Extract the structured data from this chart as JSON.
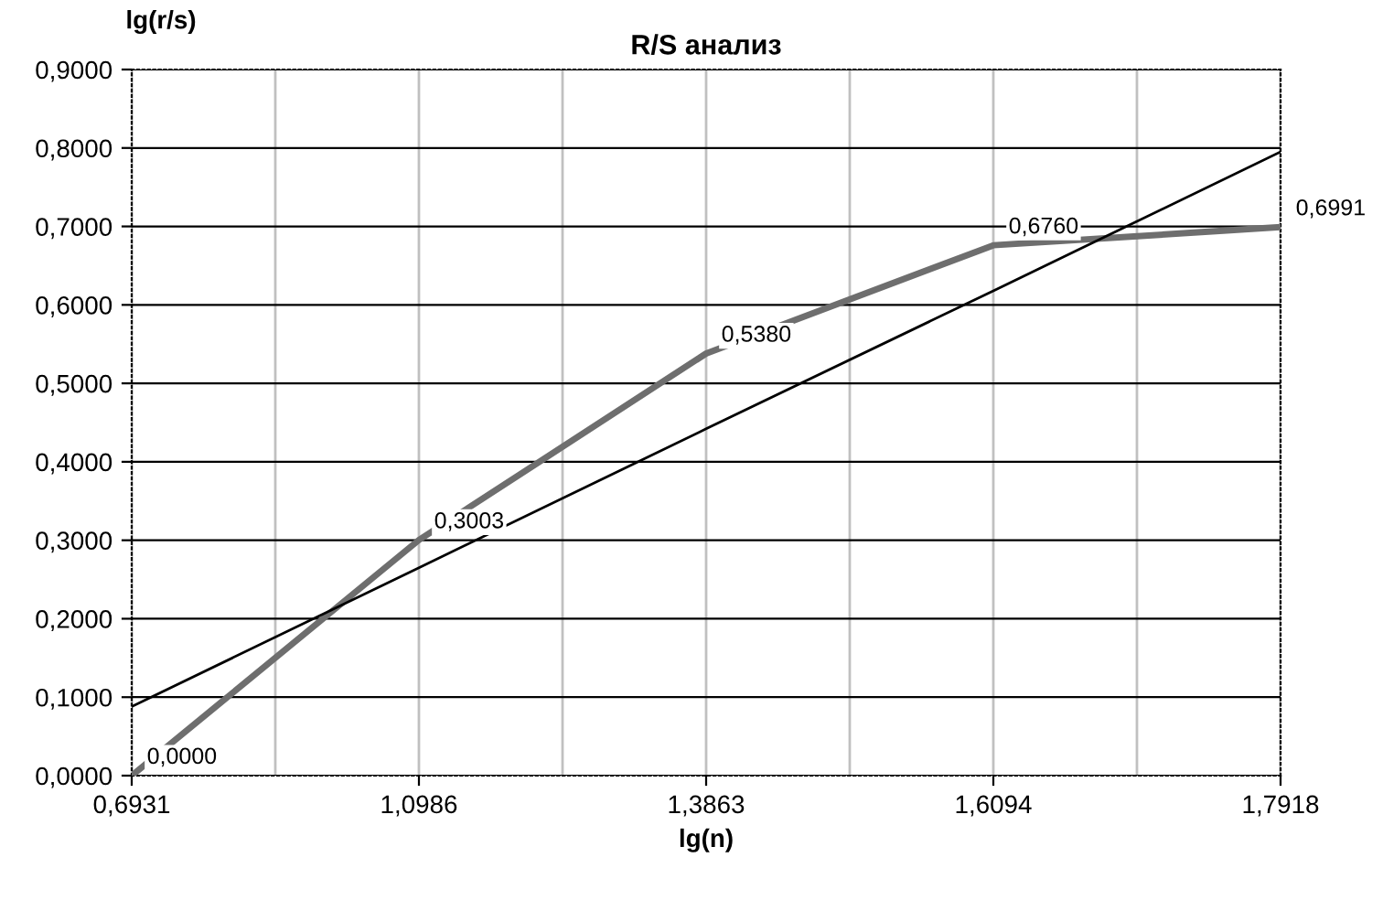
{
  "chart_data": {
    "type": "line",
    "title": "R/S анализ",
    "xlabel": "lg(n)",
    "ylabel": "lg(r/s)",
    "categories": [
      "0,6931",
      "1,0986",
      "1,3863",
      "1,6094",
      "1,7918"
    ],
    "series": [
      {
        "color": "#6e6e6e",
        "values": [
          0.0,
          0.3003,
          0.538,
          0.676,
          0.6991
        ],
        "value_labels": [
          "0,0000",
          "0,3003",
          "0,5380",
          "0,6760",
          "0,6991"
        ]
      },
      {
        "type": "line",
        "color": "#000000",
        "values": [
          0.088,
          0.265,
          0.442,
          0.618,
          0.795
        ]
      }
    ],
    "ylim": [
      0,
      0.9
    ],
    "yticks": [
      {
        "value": 0,
        "label": "0,0000"
      },
      {
        "value": 0.1,
        "label": "0,1000"
      },
      {
        "value": 0.2,
        "label": "0,2000"
      },
      {
        "value": 0.3,
        "label": "0,3000"
      },
      {
        "value": 0.4,
        "label": "0,4000"
      },
      {
        "value": 0.5,
        "label": "0,5000"
      },
      {
        "value": 0.6,
        "label": "0,6000"
      },
      {
        "value": 0.7,
        "label": "0,7000"
      },
      {
        "value": 0.8,
        "label": "0,8000"
      },
      {
        "value": 0.9,
        "label": "0,9000"
      }
    ],
    "grid": true
  }
}
